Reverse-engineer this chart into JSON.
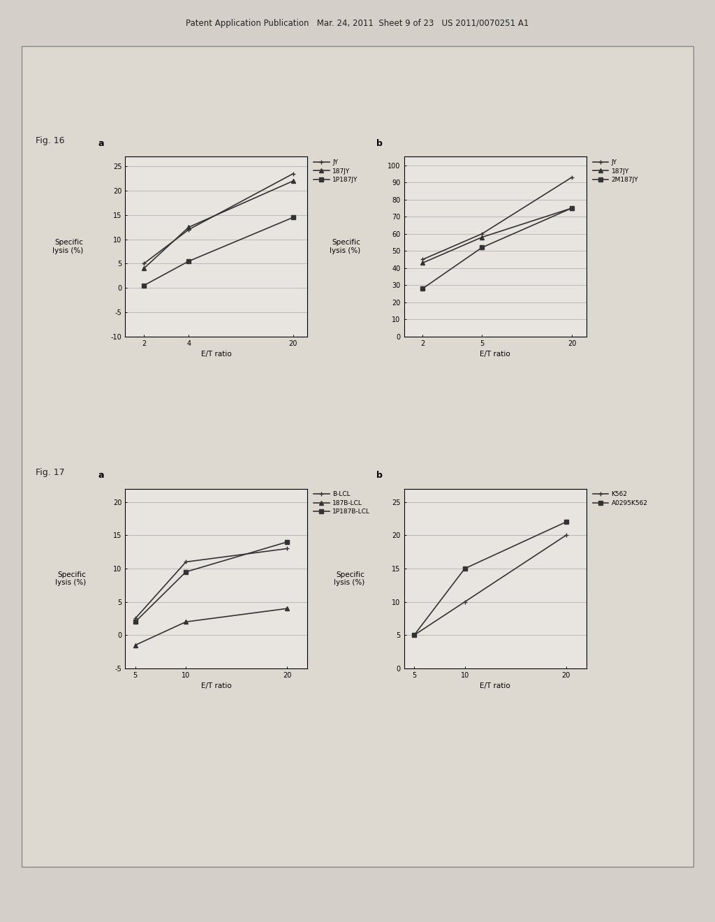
{
  "header_text": "Patent Application Publication   Mar. 24, 2011  Sheet 9 of 23   US 2011/0070251 A1",
  "fig16_label": "Fig. 16",
  "fig17_label": "Fig. 17",
  "background_color": "#d4cfc8",
  "plot_bg": "#e8e4df",
  "border_color": "#888888",
  "fig16a": {
    "sublabel": "a",
    "x": [
      2,
      4,
      20
    ],
    "series": [
      {
        "label": "JY",
        "y": [
          5.0,
          12.0,
          23.5
        ],
        "marker": "+",
        "color": "#333333",
        "lw": 1.2
      },
      {
        "label": "187JY",
        "y": [
          4.0,
          12.5,
          22.0
        ],
        "marker": "^",
        "color": "#333333",
        "lw": 1.2
      },
      {
        "label": "1P187JY",
        "y": [
          0.5,
          5.5,
          14.5
        ],
        "marker": "s",
        "color": "#333333",
        "lw": 1.2
      }
    ],
    "xlabel": "E/T ratio",
    "ylabel": "Specific\nlysis (%)",
    "yticks": [
      -10,
      -5,
      0,
      5,
      10,
      15,
      20,
      25
    ],
    "ylim": [
      -10,
      27
    ],
    "xticks": [
      2,
      4,
      20
    ],
    "xlim": [
      1.5,
      25
    ]
  },
  "fig16b": {
    "sublabel": "b",
    "x": [
      2,
      5,
      20
    ],
    "series": [
      {
        "label": "JY",
        "y": [
          45,
          60,
          93
        ],
        "marker": "+",
        "color": "#333333",
        "lw": 1.2
      },
      {
        "label": "187JY",
        "y": [
          43,
          58,
          75
        ],
        "marker": "^",
        "color": "#333333",
        "lw": 1.2
      },
      {
        "label": "2M187JY",
        "y": [
          28,
          52,
          75
        ],
        "marker": "s",
        "color": "#333333",
        "lw": 1.2
      }
    ],
    "xlabel": "E/T ratio",
    "ylabel": "Specific\nlysis (%)",
    "yticks": [
      0,
      10,
      20,
      30,
      40,
      50,
      60,
      70,
      80,
      90,
      100
    ],
    "ylim": [
      0,
      105
    ],
    "xticks": [
      2,
      5,
      20
    ],
    "xlim": [
      1.5,
      25
    ]
  },
  "fig17a": {
    "sublabel": "a",
    "x": [
      5,
      10,
      20
    ],
    "series": [
      {
        "label": "B-LCL",
        "y": [
          2.5,
          11.0,
          13.0
        ],
        "marker": "+",
        "color": "#333333",
        "lw": 1.2
      },
      {
        "label": "187B-LCL",
        "y": [
          -1.5,
          2.0,
          4.0
        ],
        "marker": "^",
        "color": "#333333",
        "lw": 1.2
      },
      {
        "label": "1P187B-LCL",
        "y": [
          2.0,
          9.5,
          14.0
        ],
        "marker": "s",
        "color": "#333333",
        "lw": 1.2
      }
    ],
    "xlabel": "E/T ratio",
    "ylabel": "Specific\nlysis (%)",
    "yticks": [
      -5,
      0,
      5,
      10,
      15,
      20
    ],
    "ylim": [
      -5,
      22
    ],
    "xticks": [
      5,
      10,
      20
    ],
    "xlim": [
      4,
      22
    ]
  },
  "fig17b": {
    "sublabel": "b",
    "x": [
      5,
      10,
      20
    ],
    "series": [
      {
        "label": "K562",
        "y": [
          5,
          10,
          20
        ],
        "marker": "+",
        "color": "#333333",
        "lw": 1.2
      },
      {
        "label": "A0295K562",
        "y": [
          5,
          15,
          22
        ],
        "marker": "s",
        "color": "#333333",
        "lw": 1.2
      }
    ],
    "xlabel": "E/T ratio",
    "ylabel": "Specific\nlysis (%)",
    "yticks": [
      0,
      5,
      10,
      15,
      20,
      25
    ],
    "ylim": [
      0,
      27
    ],
    "xticks": [
      5,
      10,
      20
    ],
    "xlim": [
      4,
      22
    ]
  }
}
